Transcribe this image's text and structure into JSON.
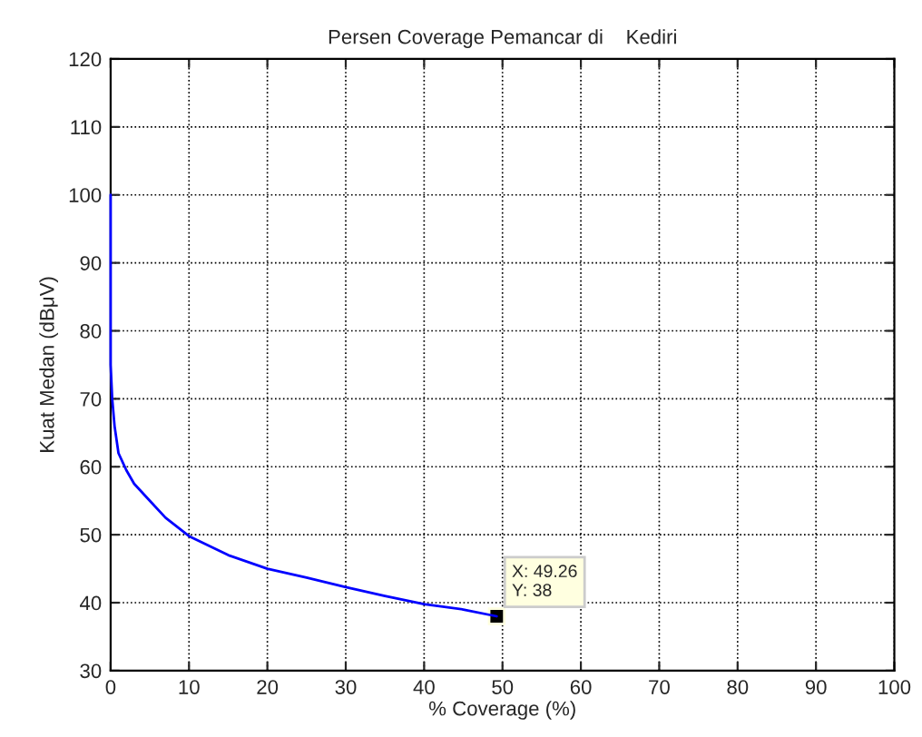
{
  "chart_data": {
    "type": "line",
    "title": "Persen Coverage Pemancar di    Kediri",
    "xlabel": "% Coverage (%)",
    "ylabel": "Kuat Medan (dBμV)",
    "x": [
      0,
      0,
      0.2,
      0.5,
      1,
      2,
      3,
      5,
      7,
      10,
      15,
      20,
      25,
      30,
      35,
      40,
      45,
      49.26
    ],
    "series": [
      {
        "color": "#0000ff",
        "values": [
          100,
          75,
          70,
          66,
          62,
          59.5,
          57.5,
          55,
          52.5,
          49.8,
          47,
          45,
          43.7,
          42.3,
          41,
          39.8,
          39,
          38
        ]
      }
    ],
    "xlim": [
      0,
      100
    ],
    "ylim": [
      30,
      120
    ],
    "xticks": [
      0,
      10,
      20,
      30,
      40,
      50,
      60,
      70,
      80,
      90,
      100
    ],
    "yticks": [
      30,
      40,
      50,
      60,
      70,
      80,
      90,
      100,
      110,
      120
    ],
    "grid": true,
    "line_style": "solid",
    "marker": "none",
    "annotations": [
      {
        "text": "X: 49.26\nY: 38",
        "x": 49.26,
        "y": 38
      }
    ]
  }
}
